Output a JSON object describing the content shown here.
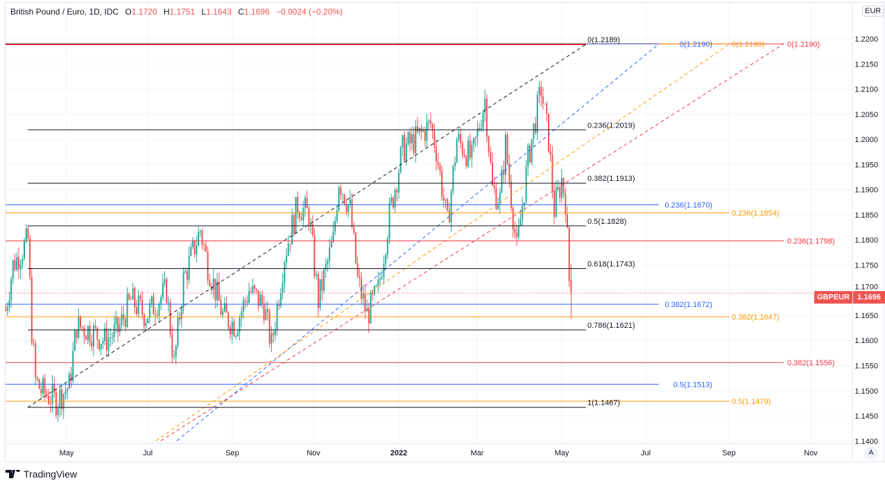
{
  "header": {
    "symbol_desc": "British Pound / Euro, 1D, IDC",
    "open_label": "O",
    "open": "1.1720",
    "high_label": "H",
    "high": "1.1751",
    "low_label": "L",
    "low": "1.1643",
    "close_label": "C",
    "close": "1.1696",
    "change": "−0.0024 (−0.20%)"
  },
  "currency_button": "EUR",
  "auto_button": "A",
  "brand": "TradingView",
  "symbol_tag": "GBPEUR",
  "last_price": "1.1696",
  "colors": {
    "up": "#26a69a",
    "down": "#ef5350",
    "black_fib": "#131722",
    "blue_fib": "#2962ff",
    "orange_fib": "#ff9800",
    "red_fib": "#f23645"
  },
  "price_axis": {
    "ticks": [
      "1.2200",
      "1.2150",
      "1.2100",
      "1.2050",
      "1.2000",
      "1.1950",
      "1.1900",
      "1.1850",
      "1.1800",
      "1.1750",
      "1.1700",
      "1.1650",
      "1.1600",
      "1.1550",
      "1.1500",
      "1.1450",
      "1.1400"
    ],
    "range": [
      1.14,
      1.22
    ]
  },
  "time_axis": {
    "ticks": [
      "May",
      "Jul",
      "Sep",
      "Nov",
      "2022",
      "Mar",
      "May",
      "Jul",
      "Sep",
      "Nov"
    ]
  },
  "fib_black": {
    "levels": [
      "0(1.2189)",
      "0.236(1.2019)",
      "0.382(1.1913)",
      "0.5(1.1828)",
      "0.618(1.1743)",
      "0.786(1.1621)",
      "1(1.1467)"
    ],
    "prices": [
      1.2189,
      1.2019,
      1.1913,
      1.1828,
      1.1743,
      1.1621,
      1.1467
    ]
  },
  "fib_blue": {
    "levels": [
      "0(1.2190)",
      "0.236(1.1870)",
      "0.382(1.1672)",
      "0.5(1.1513)"
    ],
    "prices": [
      1.219,
      1.187,
      1.1672,
      1.1513
    ]
  },
  "fib_orange": {
    "levels": [
      "0(1.2190)",
      "0.236(1.1854)",
      "0.382(1.1647)",
      "0.5(1.1479)"
    ],
    "prices": [
      1.219,
      1.1854,
      1.1647,
      1.1479
    ]
  },
  "fib_red": {
    "levels": [
      "0(1.2190)",
      "0.236(1.1798)",
      "0.382(1.1556)"
    ],
    "prices": [
      1.219,
      1.1798,
      1.1556
    ]
  },
  "chart_data": {
    "type": "candlestick",
    "ylim": [
      1.14,
      1.22
    ],
    "trend_points": [
      [
        0,
        1.166
      ],
      [
        4,
        1.175
      ],
      [
        12,
        1.18
      ],
      [
        14,
        1.162
      ],
      [
        16,
        1.152
      ],
      [
        19,
        1.15
      ],
      [
        27,
        1.148
      ],
      [
        34,
        1.151
      ],
      [
        38,
        1.163
      ],
      [
        45,
        1.162
      ],
      [
        53,
        1.16
      ],
      [
        60,
        1.162
      ],
      [
        67,
        1.168
      ],
      [
        75,
        1.165
      ],
      [
        86,
        1.17
      ],
      [
        90,
        1.155
      ],
      [
        95,
        1.172
      ],
      [
        104,
        1.182
      ],
      [
        108,
        1.175
      ],
      [
        116,
        1.165
      ],
      [
        123,
        1.163
      ],
      [
        130,
        1.17
      ],
      [
        138,
        1.167
      ],
      [
        142,
        1.159
      ],
      [
        149,
        1.177
      ],
      [
        156,
        1.187
      ],
      [
        162,
        1.185
      ],
      [
        167,
        1.168
      ],
      [
        175,
        1.18
      ],
      [
        178,
        1.192
      ],
      [
        184,
        1.186
      ],
      [
        188,
        1.172
      ],
      [
        193,
        1.165
      ],
      [
        199,
        1.17
      ],
      [
        205,
        1.185
      ],
      [
        212,
        1.198
      ],
      [
        219,
        1.2
      ],
      [
        227,
        1.203
      ],
      [
        230,
        1.198
      ],
      [
        236,
        1.183
      ],
      [
        241,
        1.2
      ],
      [
        249,
        1.196
      ],
      [
        256,
        1.208
      ],
      [
        260,
        1.19
      ],
      [
        264,
        1.188
      ],
      [
        267,
        1.199
      ],
      [
        273,
        1.178
      ],
      [
        279,
        1.196
      ],
      [
        286,
        1.21
      ],
      [
        290,
        1.2
      ],
      [
        293,
        1.186
      ],
      [
        297,
        1.192
      ],
      [
        299,
        1.188
      ],
      [
        301,
        1.172
      ],
      [
        302,
        1.1696
      ]
    ]
  }
}
